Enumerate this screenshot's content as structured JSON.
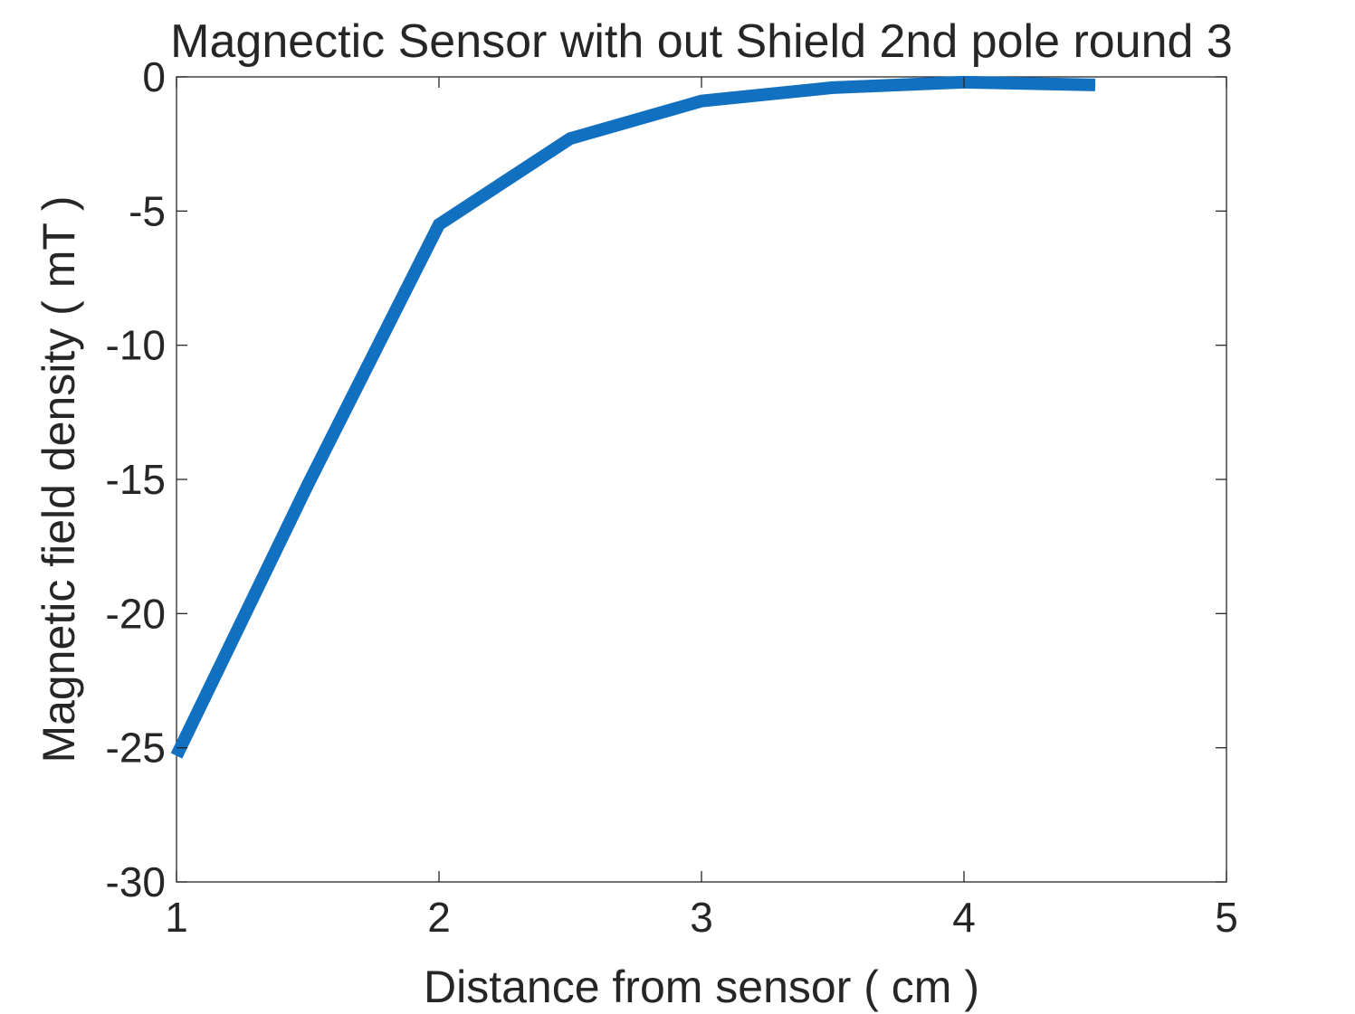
{
  "chart_data": {
    "type": "line",
    "title": "Magnectic Sensor with out Shield 2nd pole round 3",
    "xlabel": "Distance from sensor ( cm )",
    "ylabel": "Magnetic field density ( mT )",
    "xlim": [
      1,
      5
    ],
    "ylim": [
      -30,
      0
    ],
    "xticks": [
      1,
      2,
      3,
      4,
      5
    ],
    "yticks": [
      0,
      -5,
      -10,
      -15,
      -20,
      -25,
      -30
    ],
    "grid": false,
    "series": [
      {
        "color": "#1270c0",
        "x": [
          1,
          1.5,
          2,
          2.5,
          3,
          3.5,
          4,
          4.5
        ],
        "y": [
          -25.3,
          -15.2,
          -5.5,
          -2.3,
          -0.9,
          -0.4,
          -0.2,
          -0.3
        ]
      }
    ]
  }
}
